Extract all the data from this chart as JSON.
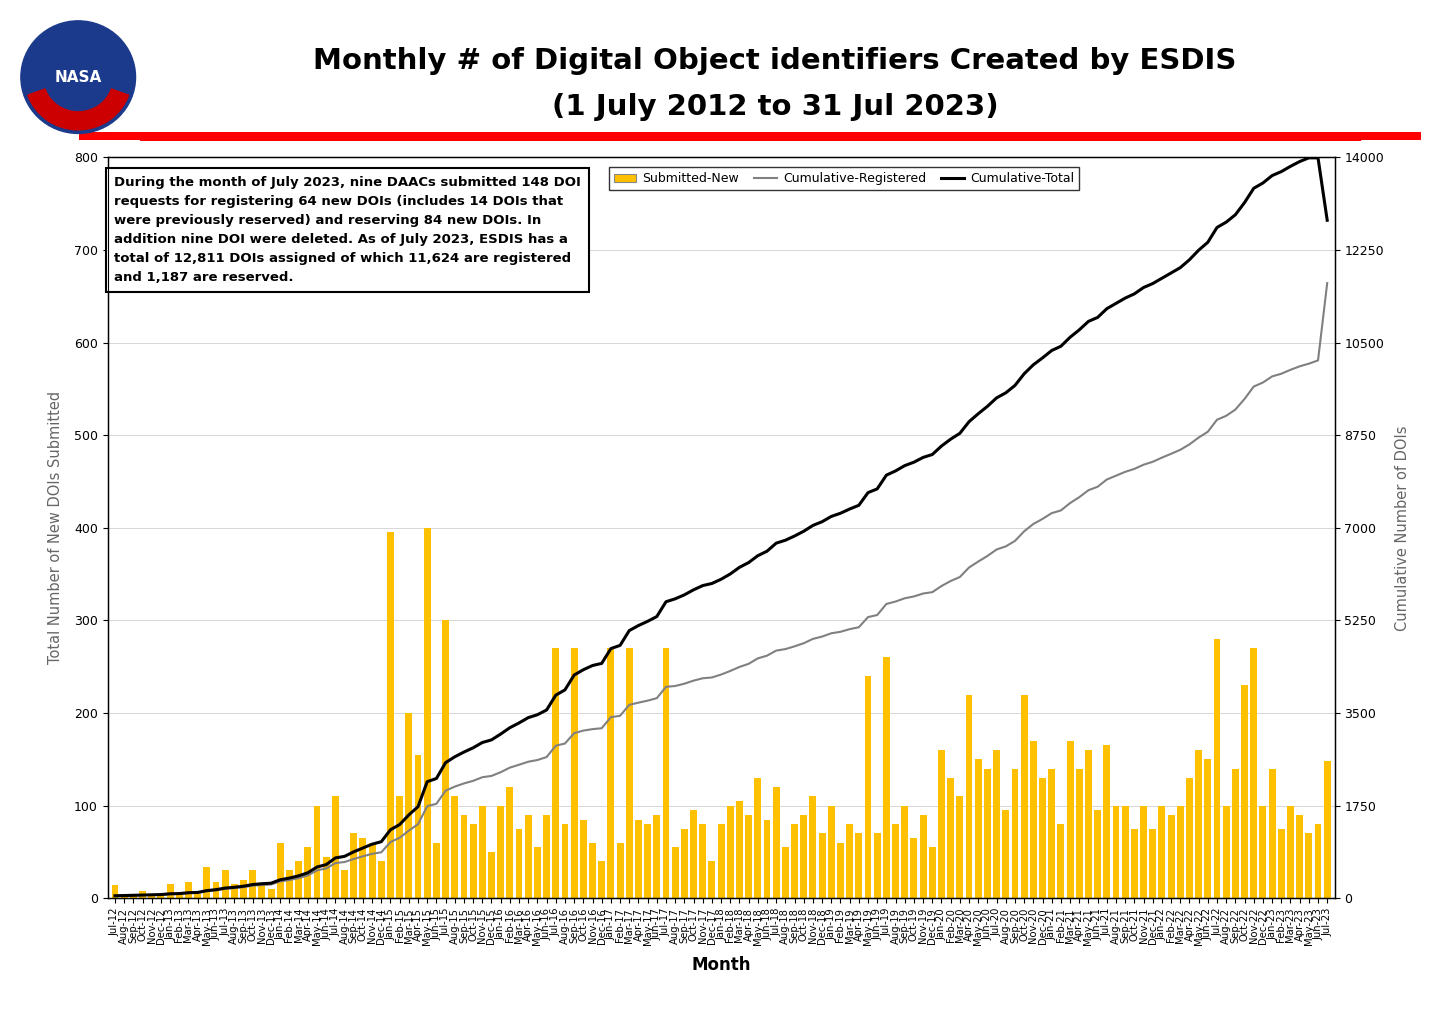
{
  "title_line1": "Monthly # of Digital Object identifiers Created by ESDIS",
  "title_line2": "(1 July 2012 to 31 Jul 2023)",
  "xlabel": "Month",
  "ylabel_left": "Total Number of New DOIs Submitted",
  "ylabel_right": "Cumulative Number of DOIs",
  "annotation_text": "During the month of July 2023, nine DAACs submitted 148 DOI\nrequests for registering 64 new DOIs (includes 14 DOIs that\nwere previously reserved) and reserving 84 new DOIs. In\naddition nine DOI were deleted. As of July 2023, ESDIS has a\ntotal of 12,811 DOIs assigned of which 11,624 are registered\nand 1,187 are reserved.",
  "bar_color": "#FFC000",
  "line_registered_color": "#808080",
  "line_total_color": "#000000",
  "ylim_left": [
    0,
    800
  ],
  "ylim_right": [
    0,
    14000
  ],
  "yticks_left": [
    0,
    100,
    200,
    300,
    400,
    500,
    600,
    700,
    800
  ],
  "yticks_right": [
    0,
    1750,
    3500,
    5250,
    7000,
    8750,
    10500,
    12250,
    14000
  ],
  "background_color": "#FFFFFF",
  "red_line_color": "#FF0000",
  "months": [
    "Jul-12",
    "Aug-12",
    "Sep-12",
    "Oct-12",
    "Nov-12",
    "Dec-12",
    "Jan-13",
    "Feb-13",
    "Mar-13",
    "Apr-13",
    "May-13",
    "Jun-13",
    "Jul-13",
    "Aug-13",
    "Sep-13",
    "Oct-13",
    "Nov-13",
    "Dec-13",
    "Jan-14",
    "Feb-14",
    "Mar-14",
    "Apr-14",
    "May-14",
    "Jun-14",
    "Jul-14",
    "Aug-14",
    "Sep-14",
    "Oct-14",
    "Nov-14",
    "Dec-14",
    "Jan-15",
    "Feb-15",
    "Mar-15",
    "Apr-15",
    "May-15",
    "Jun-15",
    "Jul-15",
    "Aug-15",
    "Sep-15",
    "Oct-15",
    "Nov-15",
    "Dec-15",
    "Jan-16",
    "Feb-16",
    "Mar-16",
    "Apr-16",
    "May-16",
    "Jun-16",
    "Jul-16",
    "Aug-16",
    "Sep-16",
    "Oct-16",
    "Nov-16",
    "Dec-16",
    "Jan-17",
    "Feb-17",
    "Mar-17",
    "Apr-17",
    "May-17",
    "Jun-17",
    "Jul-17",
    "Aug-17",
    "Sep-17",
    "Oct-17",
    "Nov-17",
    "Dec-17",
    "Jan-18",
    "Feb-18",
    "Mar-18",
    "Apr-18",
    "May-18",
    "Jun-18",
    "Jul-18",
    "Aug-18",
    "Sep-18",
    "Oct-18",
    "Nov-18",
    "Dec-18",
    "Jan-19",
    "Feb-19",
    "Mar-19",
    "Apr-19",
    "May-19",
    "Jun-19",
    "Jul-19",
    "Aug-19",
    "Sep-19",
    "Oct-19",
    "Nov-19",
    "Dec-19",
    "Jan-20",
    "Feb-20",
    "Mar-20",
    "Apr-20",
    "May-20",
    "Jun-20",
    "Jul-20",
    "Aug-20",
    "Sep-20",
    "Oct-20",
    "Nov-20",
    "Dec-20",
    "Jan-21",
    "Feb-21",
    "Mar-21",
    "Apr-21",
    "May-21",
    "Jun-21",
    "Jul-21",
    "Aug-21",
    "Sep-21",
    "Oct-21",
    "Nov-21",
    "Dec-21",
    "Jan-22",
    "Feb-22",
    "Mar-22",
    "Apr-22",
    "May-22",
    "Jun-22",
    "Jul-22",
    "Aug-22",
    "Sep-22",
    "Oct-22",
    "Nov-22",
    "Dec-22",
    "Jan-23",
    "Feb-23",
    "Mar-23",
    "Apr-23",
    "May-23",
    "Jun-23",
    "Jul-23"
  ],
  "submitted_new": [
    14,
    5,
    3,
    8,
    4,
    3,
    15,
    4,
    18,
    5,
    34,
    18,
    30,
    15,
    20,
    30,
    15,
    10,
    60,
    30,
    40,
    55,
    100,
    45,
    110,
    30,
    70,
    65,
    60,
    40,
    395,
    110,
    200,
    155,
    400,
    60,
    300,
    110,
    90,
    80,
    100,
    50,
    100,
    120,
    75,
    90,
    55,
    90,
    270,
    80,
    270,
    85,
    60,
    40,
    270,
    60,
    270,
    85,
    80,
    90,
    270,
    55,
    75,
    95,
    80,
    40,
    80,
    100,
    105,
    90,
    130,
    85,
    120,
    55,
    80,
    90,
    110,
    70,
    100,
    60,
    80,
    70,
    240,
    70,
    260,
    80,
    100,
    65,
    90,
    55,
    160,
    130,
    110,
    220,
    150,
    140,
    160,
    95,
    140,
    220,
    170,
    130,
    140,
    80,
    170,
    140,
    160,
    95,
    165,
    100,
    100,
    75,
    100,
    75,
    100,
    90,
    100,
    130,
    160,
    150,
    280,
    100,
    140,
    230,
    270,
    100,
    140,
    75,
    100,
    90,
    70,
    80,
    148
  ],
  "cumulative_registered": [
    47,
    52,
    55,
    60,
    64,
    67,
    77,
    81,
    97,
    102,
    134,
    151,
    178,
    193,
    210,
    239,
    251,
    261,
    318,
    345,
    381,
    432,
    527,
    565,
    665,
    685,
    743,
    793,
    840,
    869,
    1062,
    1143,
    1279,
    1400,
    1741,
    1785,
    2033,
    2110,
    2170,
    2219,
    2287,
    2312,
    2382,
    2469,
    2523,
    2580,
    2612,
    2668,
    2883,
    2924,
    3120,
    3168,
    3196,
    3213,
    3422,
    3448,
    3655,
    3696,
    3734,
    3781,
    3995,
    4011,
    4054,
    4112,
    4157,
    4172,
    4227,
    4295,
    4371,
    4430,
    4533,
    4584,
    4680,
    4708,
    4760,
    4819,
    4901,
    4945,
    5007,
    5035,
    5085,
    5121,
    5313,
    5352,
    5561,
    5607,
    5669,
    5703,
    5758,
    5784,
    5900,
    5995,
    6070,
    6250,
    6362,
    6468,
    6590,
    6649,
    6752,
    6934,
    7072,
    7168,
    7277,
    7328,
    7467,
    7578,
    7710,
    7776,
    7912,
    7984,
    8057,
    8113,
    8192,
    8247,
    8326,
    8398,
    8474,
    8576,
    8705,
    8815,
    9042,
    9116,
    9234,
    9435,
    9669,
    9745,
    9860,
    9911,
    9985,
    10051,
    10101,
    10163,
    11624
  ],
  "cumulative_total": [
    47,
    52,
    55,
    63,
    67,
    70,
    85,
    89,
    105,
    110,
    145,
    163,
    193,
    208,
    228,
    260,
    275,
    285,
    350,
    382,
    424,
    482,
    591,
    636,
    762,
    792,
    878,
    950,
    1022,
    1069,
    1295,
    1393,
    1576,
    1731,
    2203,
    2263,
    2563,
    2673,
    2763,
    2843,
    2943,
    2993,
    3103,
    3223,
    3313,
    3413,
    3468,
    3558,
    3838,
    3938,
    4218,
    4318,
    4398,
    4438,
    4718,
    4778,
    5058,
    5153,
    5233,
    5323,
    5603,
    5658,
    5733,
    5828,
    5908,
    5948,
    6028,
    6128,
    6253,
    6343,
    6473,
    6558,
    6710,
    6765,
    6845,
    6935,
    7045,
    7115,
    7215,
    7275,
    7355,
    7425,
    7665,
    7735,
    7995,
    8075,
    8175,
    8240,
    8330,
    8385,
    8545,
    8675,
    8785,
    9005,
    9155,
    9295,
    9455,
    9550,
    9690,
    9910,
    10080,
    10210,
    10350,
    10430,
    10600,
    10740,
    10900,
    10975,
    11140,
    11240,
    11340,
    11420,
    11540,
    11615,
    11715,
    11815,
    11915,
    12065,
    12245,
    12395,
    12675,
    12775,
    12915,
    13145,
    13415,
    13515,
    13655,
    13730,
    13830,
    13920,
    13990,
    13990,
    12811
  ]
}
